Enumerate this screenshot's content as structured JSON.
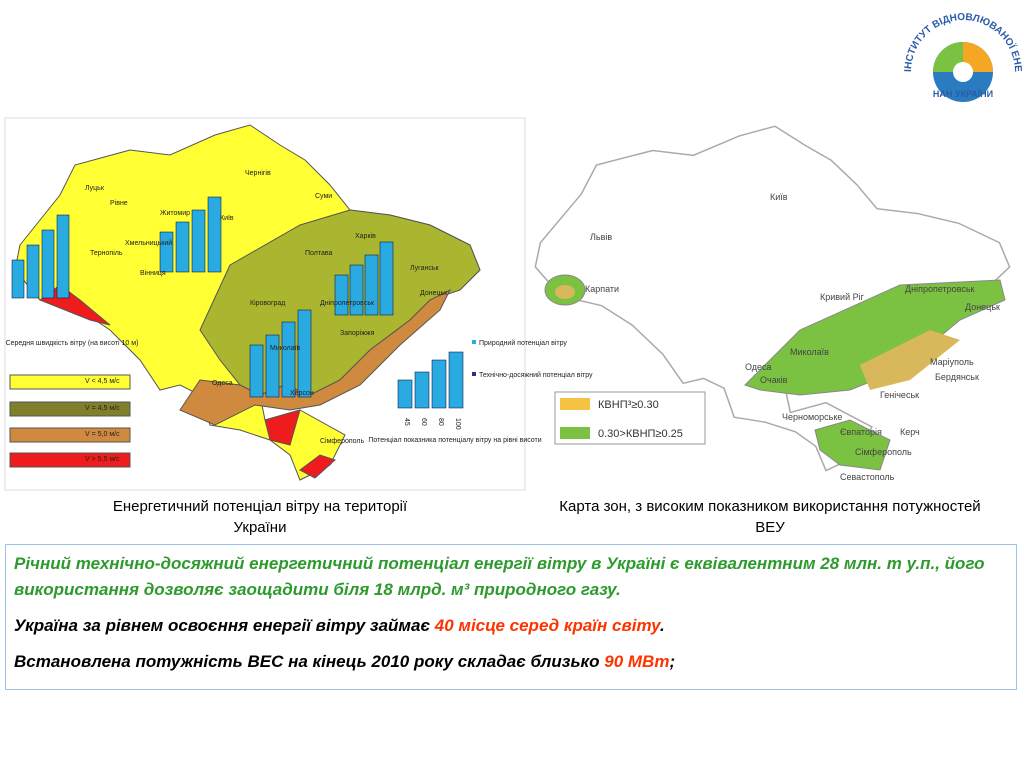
{
  "logo": {
    "ring_text": "ІНСТИТУТ ВІДНОВЛЮВАНОЇ ЕНЕРГЕТИКИ",
    "bottom_text": "НАН УКРАЇНИ"
  },
  "left_map": {
    "labels": [
      "Луцьк",
      "Рівне",
      "Житомир",
      "Чернігів",
      "Суми",
      "Київ",
      "Тернопіль",
      "Хмельницький",
      "Вінниця",
      "Полтава",
      "Харків",
      "Кіровоград",
      "Дніпропетровськ",
      "Луганськ",
      "Донецьк",
      "Запоріжжя",
      "Миколаїв",
      "Одеса",
      "Херсон",
      "Сімферополь"
    ],
    "legend_title": "Середня швидкість вітру (на висоті 10 м)",
    "legend": [
      "V < 4,5 м/с",
      "V = 4,5 м/с",
      "V = 5,0 м/с",
      "V > 5,5 м/с"
    ],
    "chart_legend": [
      "Природний потенціал вітру",
      "Технічно-досяжний потенціал вітру"
    ],
    "chart_title": "Потенціал показника потенціалу вітру на рівні висоти",
    "example_chart": {
      "categories": [
        "45",
        "60",
        "80",
        "100"
      ],
      "values": [
        35,
        45,
        60,
        70
      ],
      "ylim": [
        0,
        100
      ]
    },
    "caption": "Енергетичний потенціал вітру на території України"
  },
  "right_map": {
    "labels": [
      "Київ",
      "Львів",
      "Карпати",
      "Кривий Ріг",
      "Дніпропетровськ",
      "Донецьк",
      "Миколаїв",
      "Маріуполь",
      "Бердянськ",
      "Одеса",
      "Очаків",
      "Генічеськ",
      "Черноморське",
      "Євпаторія",
      "Керч",
      "Сімферополь",
      "Севастополь"
    ],
    "legend": [
      "КВНП³≥0.30",
      "0.30>КВНП≥0.25"
    ],
    "caption": "Карта зон, з високим показником використання потужностей ВЕУ"
  },
  "text": {
    "p1": "Річний технічно-досяжний енергетичний потенціал енергії вітру в Україні є еквівалентним 28 млн. т у.п., його використання дозволяє заощадити біля 18 млрд. м³ природного газу.",
    "p2": [
      "Україна за рівнем освоєння енергії вітру займає ",
      "40 місце серед країн світу",
      "."
    ],
    "p3": [
      "Встановлена потужність ВЕС на кінець 2010 року складає близько ",
      "90 МВт",
      ";"
    ]
  }
}
